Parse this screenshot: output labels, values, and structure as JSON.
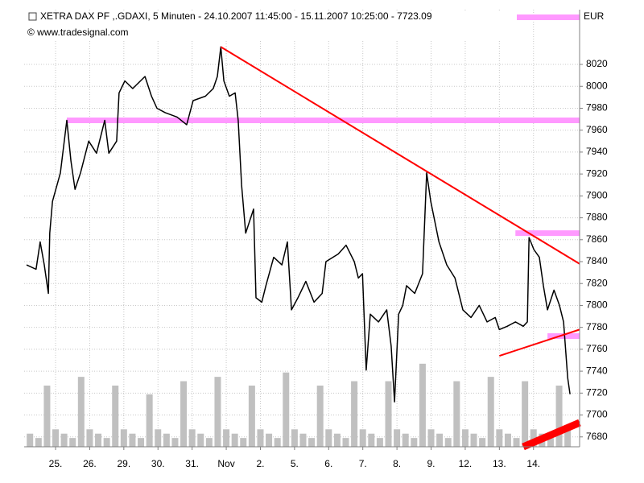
{
  "chart_data": {
    "type": "line",
    "title": "XETRA DAX PF ,.GDAXI, 5 Minuten - 24.10.2007 11:45:00 - 15.11.2007 10:25:00 - 7723.09",
    "subtitle": "© www.tradesignal.com",
    "currency": "EUR",
    "xlim": [
      0.08,
      16.35
    ],
    "xticks": [
      {
        "value": 1,
        "label": "25."
      },
      {
        "value": 2,
        "label": "26."
      },
      {
        "value": 3,
        "label": "29."
      },
      {
        "value": 4,
        "label": "30."
      },
      {
        "value": 5,
        "label": "31."
      },
      {
        "value": 6,
        "label": "Nov"
      },
      {
        "value": 7,
        "label": "2."
      },
      {
        "value": 8,
        "label": "5."
      },
      {
        "value": 9,
        "label": "6."
      },
      {
        "value": 10,
        "label": "7."
      },
      {
        "value": 11,
        "label": "8."
      },
      {
        "value": 12,
        "label": "9."
      },
      {
        "value": 13,
        "label": "12."
      },
      {
        "value": 14,
        "label": "13."
      },
      {
        "value": 15,
        "label": "14."
      }
    ],
    "ylim": [
      7671,
      8070
    ],
    "yticks": [
      7680,
      7700,
      7720,
      7740,
      7760,
      7780,
      7800,
      7820,
      7840,
      7860,
      7880,
      7900,
      7920,
      7940,
      7960,
      7980,
      8000,
      8020
    ],
    "y2lim": [
      0,
      100
    ],
    "grid": true,
    "series": [
      {
        "name": "XETRA DAX PF",
        "color": "#000000",
        "x": [
          0.15,
          0.43,
          0.55,
          0.67,
          0.79,
          0.83,
          0.91,
          1.14,
          1.33,
          1.45,
          1.57,
          1.73,
          1.97,
          2.2,
          2.44,
          2.56,
          2.79,
          2.86,
          3.03,
          3.26,
          3.62,
          3.81,
          3.97,
          4.21,
          4.56,
          4.84,
          5.03,
          5.39,
          5.62,
          5.74,
          5.84,
          5.93,
          6.09,
          6.26,
          6.35,
          6.45,
          6.57,
          6.8,
          6.87,
          7.04,
          7.16,
          7.39,
          7.63,
          7.79,
          7.91,
          8.1,
          8.33,
          8.57,
          8.81,
          8.92,
          9.28,
          9.51,
          9.75,
          9.87,
          9.99,
          10.1,
          10.22,
          10.46,
          10.7,
          10.83,
          10.93,
          11.05,
          11.17,
          11.28,
          11.52,
          11.75,
          11.87,
          11.99,
          12.23,
          12.46,
          12.7,
          12.93,
          13.17,
          13.41,
          13.64,
          13.88,
          14.0,
          14.23,
          14.47,
          14.7,
          14.82,
          14.87,
          15.01,
          15.17,
          15.29,
          15.41,
          15.6,
          15.76,
          15.88,
          16.0,
          16.07
        ],
        "values": [
          7837,
          7833,
          7858,
          7837,
          7811,
          7866,
          7895,
          7921,
          7969,
          7932,
          7906,
          7921,
          7950,
          7939,
          7969,
          7939,
          7950,
          7994,
          8005,
          7998,
          8009,
          7991,
          7980,
          7976,
          7972,
          7965,
          7987,
          7991,
          7998,
          8009,
          8036,
          8005,
          7991,
          7994,
          7969,
          7910,
          7866,
          7888,
          7807,
          7803,
          7818,
          7844,
          7837,
          7858,
          7796,
          7807,
          7822,
          7803,
          7811,
          7840,
          7847,
          7855,
          7840,
          7825,
          7829,
          7741,
          7792,
          7785,
          7796,
          7763,
          7712,
          7792,
          7800,
          7818,
          7811,
          7829,
          7921,
          7895,
          7858,
          7837,
          7825,
          7796,
          7789,
          7800,
          7785,
          7789,
          7778,
          7781,
          7785,
          7781,
          7785,
          7862,
          7851,
          7844,
          7818,
          7796,
          7814,
          7800,
          7785,
          7734,
          7719
        ]
      },
      {
        "name": "Volume",
        "color": "#c0c0c0",
        "axis": "y2",
        "x": [
          0.25,
          0.5,
          0.75,
          1.0,
          1.25,
          1.5,
          1.75,
          2.0,
          2.25,
          2.5,
          2.75,
          3.0,
          3.25,
          3.5,
          3.75,
          4.0,
          4.25,
          4.5,
          4.75,
          5.0,
          5.25,
          5.5,
          5.75,
          6.0,
          6.25,
          6.5,
          6.75,
          7.0,
          7.25,
          7.5,
          7.75,
          8.0,
          8.25,
          8.5,
          8.75,
          9.0,
          9.25,
          9.5,
          9.75,
          10.0,
          10.25,
          10.5,
          10.75,
          11.0,
          11.25,
          11.5,
          11.75,
          12.0,
          12.25,
          12.5,
          12.75,
          13.0,
          13.25,
          13.5,
          13.75,
          14.0,
          14.25,
          14.5,
          14.75,
          15.0,
          15.25,
          15.5,
          15.75,
          16.0
        ],
        "values": [
          3,
          2,
          14,
          4,
          3,
          2,
          16,
          4,
          3,
          2,
          14,
          4,
          3,
          2,
          12,
          4,
          3,
          2,
          15,
          4,
          3,
          2,
          16,
          4,
          3,
          2,
          14,
          4,
          3,
          2,
          17,
          4,
          3,
          2,
          14,
          4,
          3,
          2,
          15,
          4,
          3,
          2,
          15,
          4,
          3,
          2,
          19,
          4,
          3,
          2,
          15,
          4,
          3,
          2,
          16,
          4,
          3,
          2,
          15,
          4,
          3,
          2,
          14,
          4
        ]
      }
    ],
    "trendlines": [
      {
        "color": "#ff0000",
        "width": 2,
        "x": [
          5.84,
          16.35
        ],
        "y": [
          8036,
          7838
        ]
      },
      {
        "color": "#ff0000",
        "width": 2,
        "x": [
          14.0,
          16.35
        ],
        "y": [
          7754,
          7778
        ]
      },
      {
        "color": "#ff0000",
        "width": 9,
        "x": [
          14.7,
          16.35
        ],
        "y": [
          7671,
          7693
        ]
      }
    ],
    "levels": [
      {
        "color": "#ff99ff",
        "value": 8063,
        "x": [
          14.5,
          16.35
        ]
      },
      {
        "color": "#ff99ff",
        "value": 7969,
        "x": [
          1.33,
          16.35
        ]
      },
      {
        "color": "#ff99ff",
        "value": 7866,
        "x": [
          14.47,
          16.35
        ]
      },
      {
        "color": "#ff99ff",
        "value": 7772,
        "x": [
          15.41,
          16.35
        ]
      }
    ]
  }
}
